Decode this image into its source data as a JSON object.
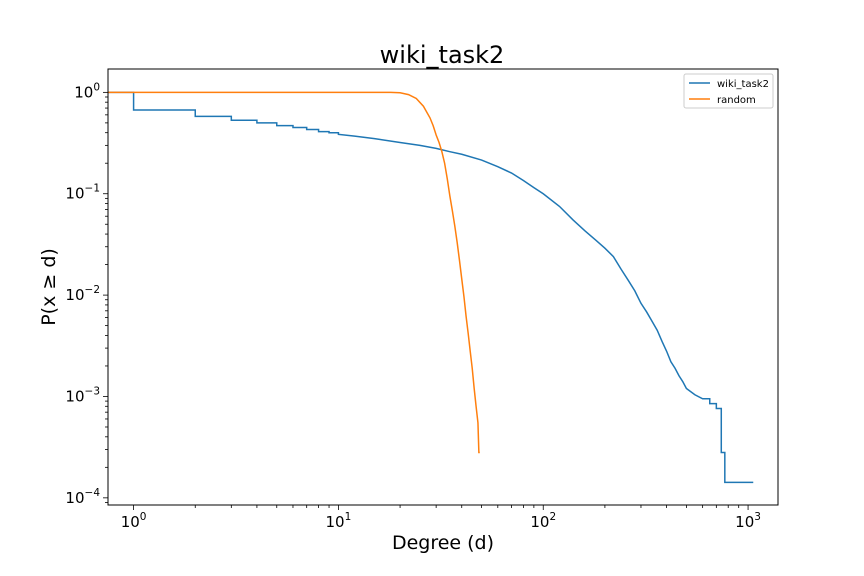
{
  "chart_data": {
    "type": "line",
    "title": "wiki_task2",
    "xlabel": "Degree (d)",
    "ylabel": "P(x ≥ d)",
    "xscale": "log",
    "yscale": "log",
    "xlim": [
      0.75,
      1400
    ],
    "ylim": [
      8.5e-05,
      1.7
    ],
    "grid": false,
    "legend_position": "top-right",
    "x_ticks": [
      {
        "base": "10",
        "exp": "0",
        "value": 1
      },
      {
        "base": "10",
        "exp": "1",
        "value": 10
      },
      {
        "base": "10",
        "exp": "2",
        "value": 100
      },
      {
        "base": "10",
        "exp": "3",
        "value": 1000
      }
    ],
    "y_ticks": [
      {
        "base": "10",
        "exp": "−4",
        "value": 0.0001
      },
      {
        "base": "10",
        "exp": "−3",
        "value": 0.001
      },
      {
        "base": "10",
        "exp": "−2",
        "value": 0.01
      },
      {
        "base": "10",
        "exp": "−1",
        "value": 0.1
      },
      {
        "base": "10",
        "exp": "0",
        "value": 1
      }
    ],
    "series": [
      {
        "name": "wiki_task2",
        "color": "#1f77b4",
        "points": [
          [
            0.75,
            1.0
          ],
          [
            1.0,
            1.0
          ],
          [
            1.0,
            0.67
          ],
          [
            2.0,
            0.67
          ],
          [
            2.0,
            0.58
          ],
          [
            3.0,
            0.58
          ],
          [
            3.0,
            0.53
          ],
          [
            4.0,
            0.53
          ],
          [
            4.0,
            0.5
          ],
          [
            5.0,
            0.5
          ],
          [
            5.0,
            0.47
          ],
          [
            6.0,
            0.47
          ],
          [
            6.0,
            0.45
          ],
          [
            7.0,
            0.45
          ],
          [
            7.0,
            0.43
          ],
          [
            8.0,
            0.43
          ],
          [
            8.0,
            0.41
          ],
          [
            9.0,
            0.41
          ],
          [
            9.0,
            0.4
          ],
          [
            10.0,
            0.4
          ],
          [
            10.0,
            0.385
          ],
          [
            12.0,
            0.37
          ],
          [
            15.0,
            0.35
          ],
          [
            20.0,
            0.32
          ],
          [
            25.0,
            0.3
          ],
          [
            30.0,
            0.28
          ],
          [
            35.0,
            0.26
          ],
          [
            40.0,
            0.245
          ],
          [
            50.0,
            0.215
          ],
          [
            60.0,
            0.185
          ],
          [
            70.0,
            0.16
          ],
          [
            80.0,
            0.135
          ],
          [
            90.0,
            0.115
          ],
          [
            100.0,
            0.1
          ],
          [
            120.0,
            0.075
          ],
          [
            140.0,
            0.055
          ],
          [
            160.0,
            0.043
          ],
          [
            180.0,
            0.035
          ],
          [
            200.0,
            0.029
          ],
          [
            220.0,
            0.024
          ],
          [
            240.0,
            0.018
          ],
          [
            260.0,
            0.014
          ],
          [
            280.0,
            0.011
          ],
          [
            300.0,
            0.0083
          ],
          [
            320.0,
            0.0068
          ],
          [
            340.0,
            0.0055
          ],
          [
            360.0,
            0.0045
          ],
          [
            380.0,
            0.0035
          ],
          [
            400.0,
            0.0028
          ],
          [
            420.0,
            0.0022
          ],
          [
            440.0,
            0.0019
          ],
          [
            460.0,
            0.0016
          ],
          [
            480.0,
            0.0014
          ],
          [
            500.0,
            0.0012
          ],
          [
            550.0,
            0.00104
          ],
          [
            600.0,
            0.00095
          ],
          [
            650.0,
            0.00095
          ],
          [
            650.0,
            0.00085
          ],
          [
            700.0,
            0.00085
          ],
          [
            700.0,
            0.00076
          ],
          [
            740.0,
            0.00076
          ],
          [
            740.0,
            0.00028
          ],
          [
            770.0,
            0.00028
          ],
          [
            770.0,
            0.000142
          ],
          [
            1060.0,
            0.000142
          ]
        ]
      },
      {
        "name": "random",
        "color": "#ff7f0e",
        "points": [
          [
            0.75,
            1.0
          ],
          [
            18.0,
            1.0
          ],
          [
            20.0,
            0.99
          ],
          [
            22.0,
            0.95
          ],
          [
            24.0,
            0.87
          ],
          [
            26.0,
            0.73
          ],
          [
            28.0,
            0.56
          ],
          [
            29.0,
            0.47
          ],
          [
            30.0,
            0.38
          ],
          [
            31.0,
            0.32
          ],
          [
            32.0,
            0.26
          ],
          [
            33.0,
            0.2
          ],
          [
            34.0,
            0.14
          ],
          [
            35.0,
            0.095
          ],
          [
            36.0,
            0.068
          ],
          [
            37.0,
            0.048
          ],
          [
            38.0,
            0.033
          ],
          [
            39.0,
            0.022
          ],
          [
            40.0,
            0.0145
          ],
          [
            41.0,
            0.0097
          ],
          [
            42.0,
            0.0062
          ],
          [
            43.0,
            0.0042
          ],
          [
            44.0,
            0.0028
          ],
          [
            45.0,
            0.0019
          ],
          [
            46.0,
            0.0012
          ],
          [
            47.0,
            0.0008
          ],
          [
            48.0,
            0.00055
          ],
          [
            48.5,
            0.00028
          ],
          [
            49.0,
            0.00028
          ]
        ]
      }
    ]
  }
}
